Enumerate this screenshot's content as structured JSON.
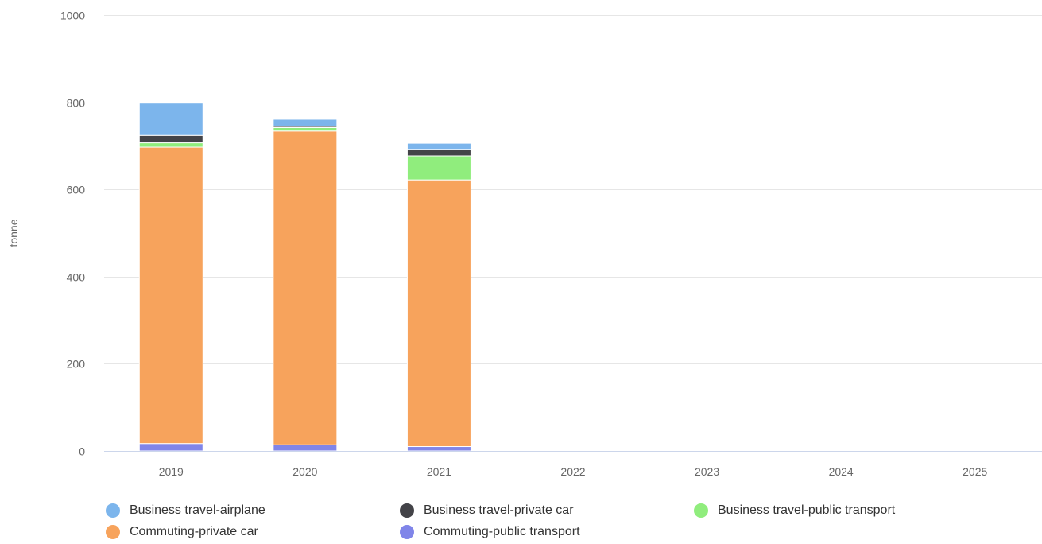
{
  "chart_data": {
    "type": "bar",
    "stacked": true,
    "categories": [
      "2019",
      "2020",
      "2021",
      "2022",
      "2023",
      "2024",
      "2025"
    ],
    "ylabel": "tonne",
    "ylim": [
      0,
      1000
    ],
    "yticks": [
      0,
      200,
      400,
      600,
      800,
      1000
    ],
    "grid": true,
    "legend_position": "bottom",
    "series": [
      {
        "name": "Commuting-public transport",
        "color": "#8085e9",
        "values": [
          17,
          14,
          10,
          0,
          0,
          0,
          0
        ]
      },
      {
        "name": "Commuting-private car",
        "color": "#f7a35c",
        "values": [
          680,
          720,
          612,
          0,
          0,
          0,
          0
        ]
      },
      {
        "name": "Business travel-public transport",
        "color": "#90ed7d",
        "values": [
          10,
          8,
          55,
          0,
          0,
          0,
          0
        ]
      },
      {
        "name": "Business travel-private car",
        "color": "#434348",
        "values": [
          17,
          3,
          15,
          0,
          0,
          0,
          0
        ]
      },
      {
        "name": "Business travel-airplane",
        "color": "#7cb5ec",
        "values": [
          74,
          16,
          14,
          0,
          0,
          0,
          0
        ]
      }
    ],
    "legend_order": [
      "Business travel-airplane",
      "Business travel-private car",
      "Business travel-public transport",
      "Commuting-private car",
      "Commuting-public transport"
    ]
  }
}
